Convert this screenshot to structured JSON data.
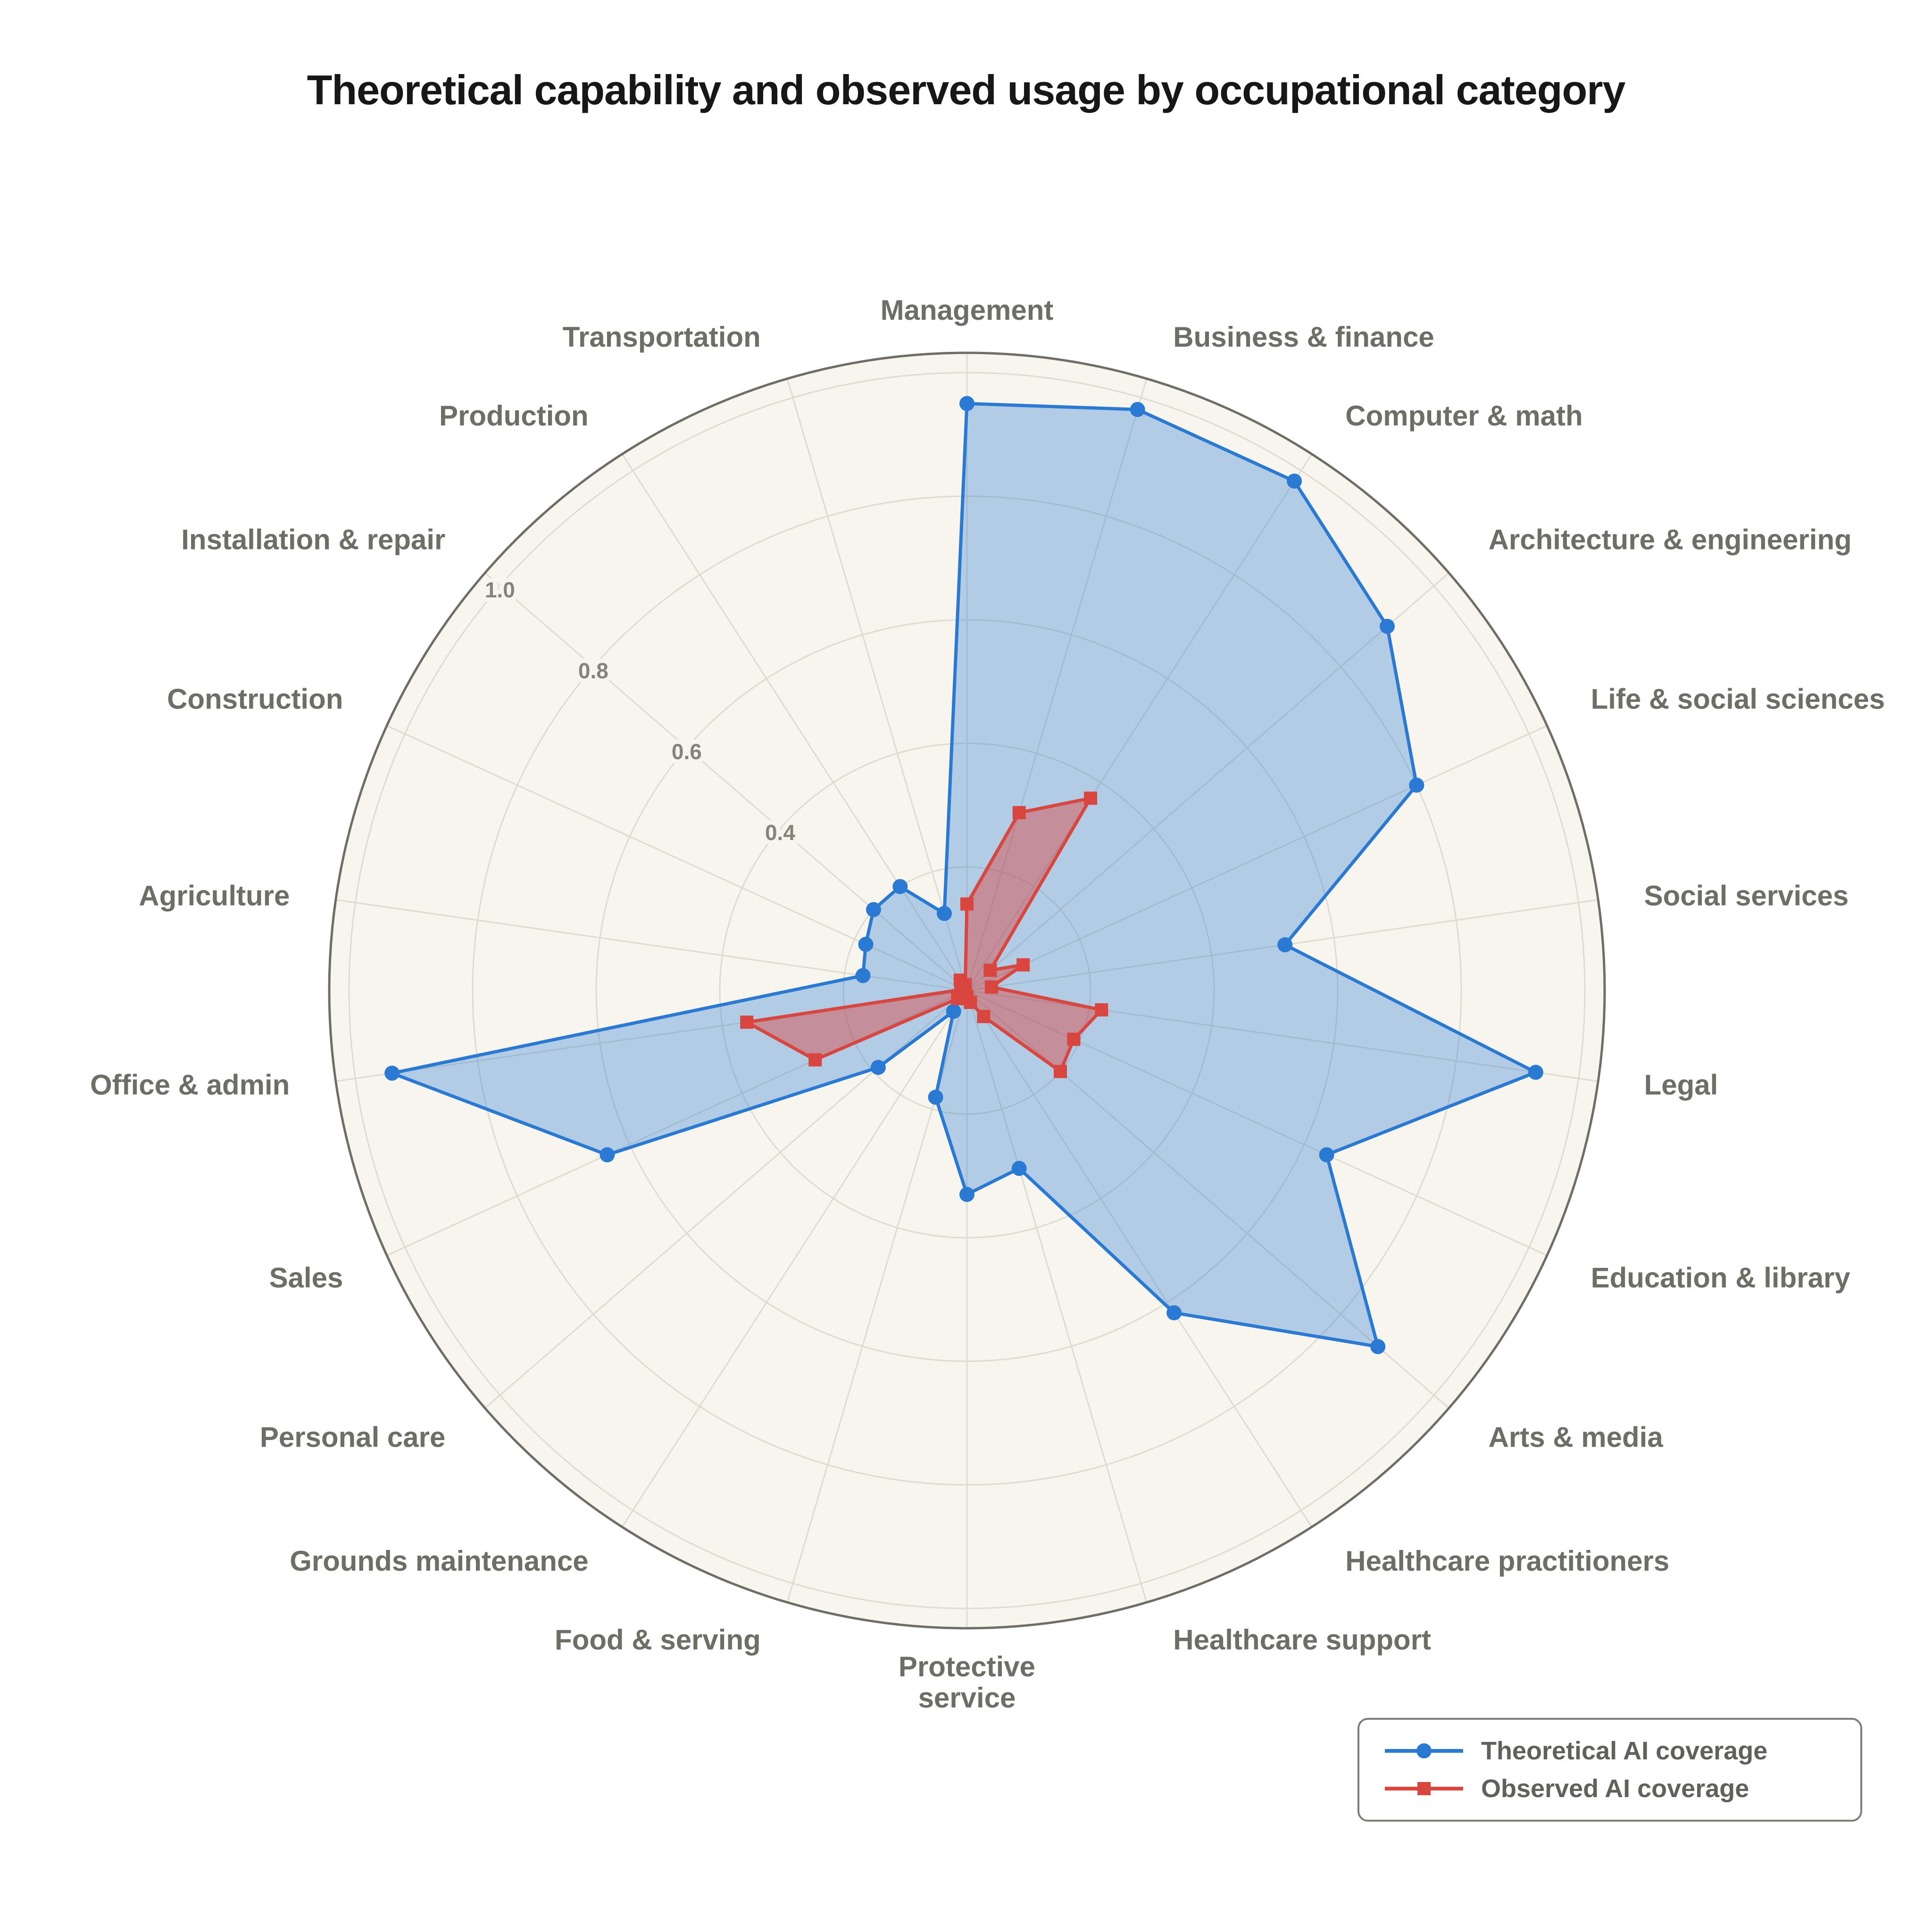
{
  "title": "Theoretical capability and observed usage by occupational category",
  "legend": {
    "items": [
      {
        "label": "Theoretical AI coverage",
        "series": "theoretical"
      },
      {
        "label": "Observed AI coverage",
        "series": "observed"
      }
    ]
  },
  "colors": {
    "page_background": "#ffffff",
    "polar_background": "#f7f5ee",
    "grid": "#dedbd0",
    "outer_ring": "#6e6e67",
    "category_label": "#6e6e66",
    "tick_label": "#84847b",
    "title": "#17171a",
    "theoretical": "#2a79d3",
    "observed": "#d9453f"
  },
  "chart_data": {
    "type": "radar",
    "categories": [
      "Management",
      "Business & finance",
      "Computer & math",
      "Architecture & engineering",
      "Life & social sciences",
      "Social services",
      "Legal",
      "Education & library",
      "Arts & media",
      "Healthcare practitioners",
      "Healthcare support",
      "Protective service",
      "Food & serving",
      "Grounds maintenance",
      "Personal care",
      "Sales",
      "Office & admin",
      "Agriculture",
      "Construction",
      "Installation & repair",
      "Production",
      "Transportation"
    ],
    "category_label_lines": {
      "Protective service": [
        "Protective",
        "service"
      ]
    },
    "series": [
      {
        "name": "Theoretical AI coverage",
        "key": "theoretical",
        "marker": "circle",
        "values": [
          0.95,
          0.98,
          0.98,
          0.9,
          0.8,
          0.52,
          0.93,
          0.64,
          0.88,
          0.62,
          0.3,
          0.33,
          0.18,
          0.04,
          0.19,
          0.64,
          0.94,
          0.17,
          0.18,
          0.2,
          0.2,
          0.13
        ]
      },
      {
        "name": "Observed AI coverage",
        "key": "observed",
        "marker": "square",
        "values": [
          0.14,
          0.3,
          0.37,
          0.05,
          0.1,
          0.04,
          0.22,
          0.19,
          0.2,
          0.05,
          0.02,
          0.01,
          0.01,
          0.01,
          0.02,
          0.27,
          0.36,
          0.01,
          0.01,
          0.01,
          0.02,
          0.01
        ]
      }
    ],
    "r_ticks": [
      0.4,
      0.6,
      0.8,
      1.0
    ],
    "r_tick_labels": [
      "0.4",
      "0.6",
      "0.8",
      "1.0"
    ],
    "grid_rings": [
      0.2,
      0.4,
      0.6,
      0.8,
      1.0
    ],
    "r_max": 1.0,
    "rlabel_angle_deg": 310.9,
    "start_angle": "top",
    "direction": "clockwise",
    "grid": true,
    "legend_position": "lower right"
  }
}
